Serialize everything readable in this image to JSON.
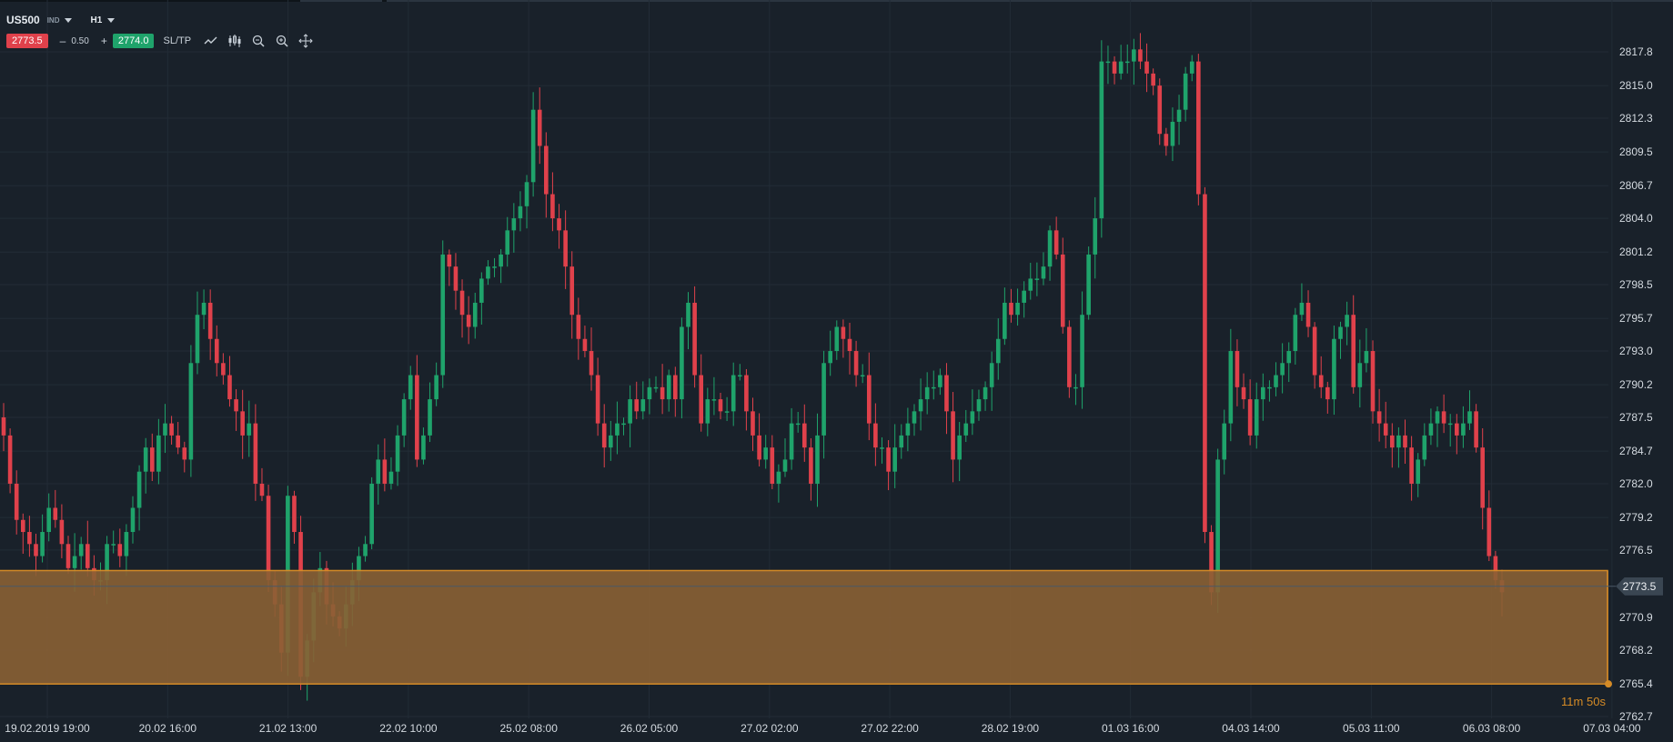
{
  "symbol": {
    "name": "US500",
    "type": "IND"
  },
  "timeframe": {
    "value": "H1"
  },
  "trade": {
    "sell_price": "2773.5",
    "volume": "0.50",
    "minus": "–",
    "plus": "+",
    "buy_price": "2774.0",
    "sltp_label": "SL/TP"
  },
  "toolbar_icons": [
    "line-chart-icon",
    "candles-icon",
    "zoom-out-icon",
    "zoom-in-icon",
    "crosshair-icon"
  ],
  "price_axis": {
    "ticks": [
      "2817.8",
      "2815.0",
      "2812.3",
      "2809.5",
      "2806.7",
      "2804.0",
      "2801.2",
      "2798.5",
      "2795.7",
      "2793.0",
      "2790.2",
      "2787.5",
      "2784.7",
      "2782.0",
      "2779.2",
      "2776.5",
      "2773.5",
      "2770.9",
      "2768.2",
      "2765.4",
      "2762.7"
    ],
    "current_price": "2773.5"
  },
  "time_axis": {
    "ticks": [
      "19.02.2019 19:00",
      "20.02 16:00",
      "21.02 13:00",
      "22.02 10:00",
      "25.02 08:00",
      "26.02 05:00",
      "27.02 02:00",
      "27.02 22:00",
      "28.02 19:00",
      "01.03 16:00",
      "04.03 14:00",
      "05.03 11:00",
      "06.03 08:00",
      "07.03 04:00"
    ]
  },
  "countdown": {
    "minutes": "11",
    "m_unit": "m",
    "seconds": "50",
    "s_unit": "s"
  },
  "colors": {
    "background": "#19212a",
    "bull": "#1fa36b",
    "bear": "#e0414b",
    "zone_fill": "#8a6134",
    "zone_border": "#d58b26",
    "grid": "#222c36"
  },
  "chart_data": {
    "type": "candlestick",
    "symbol": "US500",
    "timeframe": "H1",
    "y_range": [
      2762.7,
      2819.5
    ],
    "grid": true,
    "zone": {
      "upper": 2774.8,
      "lower": 2765.4
    },
    "closes": [
      2786,
      2782,
      2779,
      2778,
      2777,
      2776,
      2778,
      2780,
      2779,
      2777,
      2775,
      2776,
      2777,
      2775,
      2774,
      2774,
      2777,
      2777,
      2776,
      2778,
      2780,
      2783,
      2785,
      2783,
      2786,
      2787,
      2786,
      2785,
      2784,
      2792,
      2796,
      2797,
      2794,
      2792,
      2791,
      2789,
      2788,
      2786,
      2787,
      2782,
      2781,
      2774,
      2772,
      2768,
      2781,
      2778,
      2766,
      2769,
      2773,
      2775,
      2772,
      2771,
      2770,
      2772,
      2774,
      2776,
      2777,
      2782,
      2784,
      2782,
      2783,
      2786,
      2789,
      2791,
      2784,
      2786,
      2789,
      2791,
      2801,
      2800,
      2798,
      2796,
      2795,
      2797,
      2799,
      2800,
      2800,
      2801,
      2803,
      2804,
      2805,
      2807,
      2813,
      2810,
      2806,
      2804,
      2803,
      2800,
      2796,
      2794,
      2793,
      2791,
      2787,
      2785,
      2786,
      2787,
      2787,
      2789,
      2788,
      2789,
      2790,
      2790,
      2789,
      2791,
      2789,
      2795,
      2797,
      2791,
      2787,
      2789,
      2789,
      2788,
      2788,
      2791,
      2791,
      2788,
      2786,
      2784,
      2785,
      2782,
      2783,
      2784,
      2787,
      2787,
      2785,
      2782,
      2786,
      2792,
      2793,
      2795,
      2794,
      2793,
      2791,
      2791,
      2787,
      2785,
      2785,
      2783,
      2785,
      2786,
      2787,
      2788,
      2789,
      2790,
      2790,
      2791,
      2788,
      2784,
      2786,
      2787,
      2788,
      2789,
      2790,
      2792,
      2794,
      2797,
      2796,
      2797,
      2798,
      2799,
      2799,
      2800,
      2803,
      2801,
      2795,
      2790,
      2790,
      2796,
      2801,
      2804,
      2817,
      2817,
      2816,
      2817,
      2817,
      2818,
      2817,
      2816,
      2815,
      2811,
      2810,
      2812,
      2813,
      2816,
      2817,
      2806,
      2778,
      2773,
      2784,
      2787,
      2793,
      2790,
      2789,
      2786,
      2789,
      2790,
      2790,
      2791,
      2792,
      2793,
      2796,
      2797,
      2795,
      2791,
      2790,
      2789,
      2794,
      2795,
      2796,
      2790,
      2792,
      2793,
      2788,
      2787,
      2786,
      2785,
      2786,
      2785,
      2782,
      2784,
      2786,
      2787,
      2788,
      2787,
      2787,
      2786,
      2787,
      2788,
      2785,
      2780,
      2776,
      2774,
      2773
    ]
  }
}
